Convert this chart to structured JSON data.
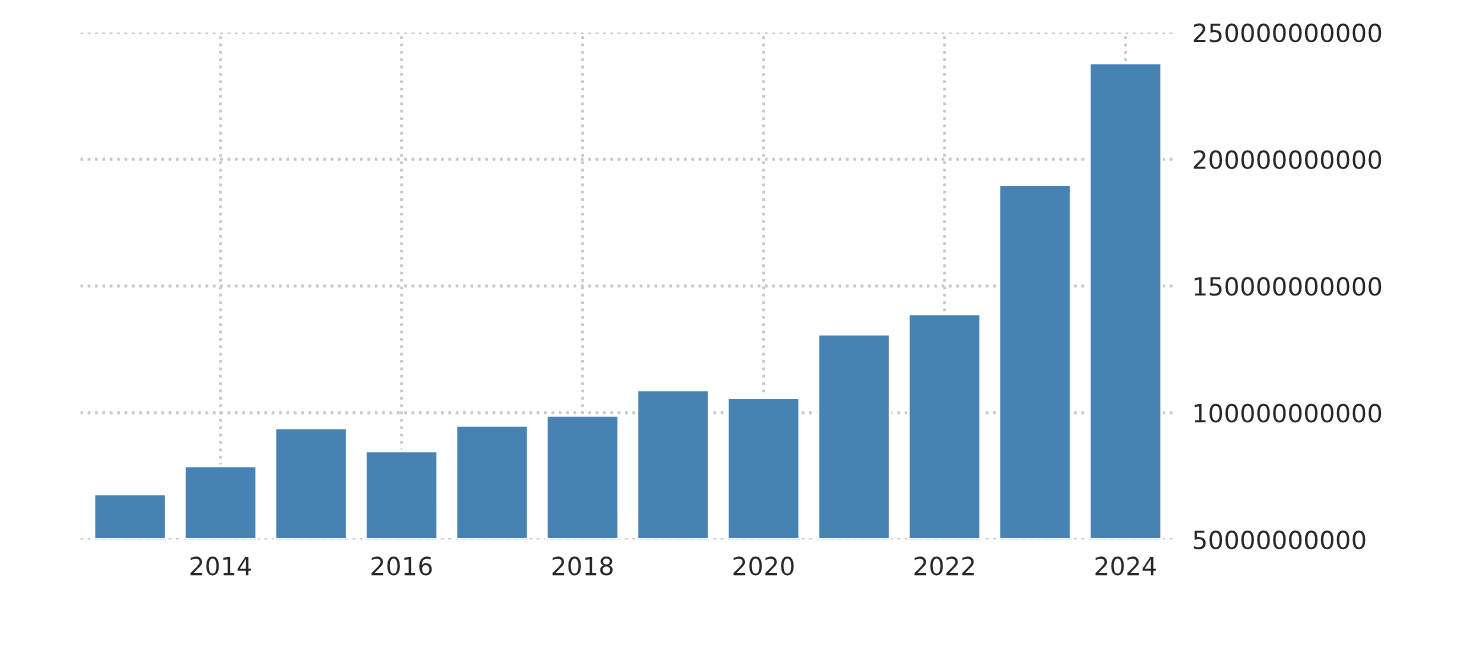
{
  "chart_data": {
    "type": "bar",
    "x": [
      2013,
      2014,
      2015,
      2016,
      2017,
      2018,
      2019,
      2020,
      2021,
      2022,
      2023,
      2024
    ],
    "values": [
      68000000000,
      79000000000,
      94000000000,
      85000000000,
      95000000000,
      99000000000,
      109000000000,
      106000000000,
      131000000000,
      139000000000,
      190000000000,
      238000000000
    ],
    "color": "#4682b4",
    "xlim": [
      2012.45,
      2024.55
    ],
    "xticks": [
      2014,
      2016,
      2018,
      2020,
      2022,
      2024
    ],
    "ylim": [
      50000000000,
      250000000000
    ],
    "yticks": [
      50000000000,
      100000000000,
      150000000000,
      200000000000,
      250000000000
    ],
    "grid": true
  }
}
